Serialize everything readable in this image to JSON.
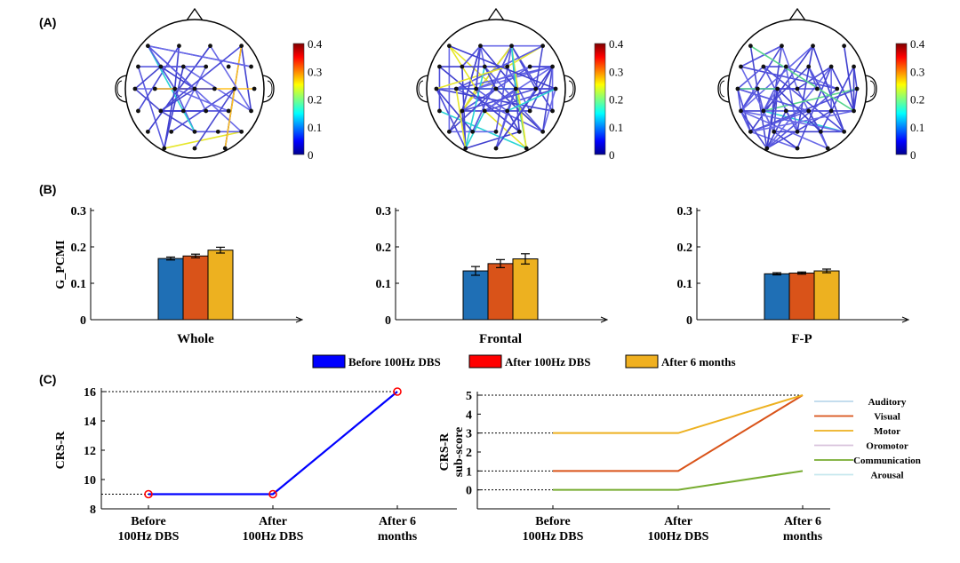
{
  "panel_labels": {
    "a": "(A)",
    "b": "(B)",
    "c": "(C)"
  },
  "colormaps": [
    {
      "ticks": [
        "0.4",
        "0.3",
        "0.2",
        "0.1",
        "0"
      ]
    },
    {
      "ticks": [
        "0.4",
        "0.3",
        "0.2",
        "0.1",
        "0"
      ]
    },
    {
      "ticks": [
        "0.4",
        "0.3",
        "0.2",
        "0.1",
        "0"
      ]
    }
  ],
  "legend": [
    {
      "label": "Before 100Hz DBS",
      "color": "#0000ff"
    },
    {
      "label": "After 100Hz DBS",
      "color": "#ff0000"
    },
    {
      "label": "After 6 months",
      "color": "#f0b020"
    }
  ],
  "chart_data": [
    {
      "type": "bar",
      "panel": "B",
      "ylabel": "G_PCMI",
      "ylim": [
        0,
        0.3
      ],
      "yticks": [
        "0",
        "0.1",
        "0.2",
        "0.3"
      ],
      "groups": [
        {
          "category": "Whole",
          "values": [
            0.168,
            0.175,
            0.191
          ],
          "errors": [
            0.004,
            0.005,
            0.008
          ]
        },
        {
          "category": "Frontal",
          "values": [
            0.134,
            0.154,
            0.167
          ],
          "errors": [
            0.012,
            0.011,
            0.014
          ]
        },
        {
          "category": "F-P",
          "values": [
            0.126,
            0.128,
            0.134
          ],
          "errors": [
            0.003,
            0.003,
            0.005
          ]
        }
      ],
      "series_colors": [
        "#1f6fb5",
        "#d95319",
        "#edb120"
      ]
    },
    {
      "type": "line",
      "panel": "C",
      "ylabel": "CRS-R",
      "ylim": [
        8,
        16
      ],
      "yticks": [
        "8",
        "10",
        "12",
        "14",
        "16"
      ],
      "categories": [
        "Before\n100Hz DBS",
        "After\n100Hz DBS",
        "After 6\nmonths"
      ],
      "series": [
        {
          "values": [
            9,
            9,
            16
          ],
          "color": "#0000ff"
        }
      ]
    },
    {
      "type": "line",
      "panel": "C",
      "ylabel": "CRS-R\nsub-score",
      "ylim": [
        -1,
        5
      ],
      "yticks": [
        "0",
        "1",
        "2",
        "3",
        "4",
        "5"
      ],
      "categories": [
        "Before\n100Hz DBS",
        "After\n100Hz DBS",
        "After 6\nmonths"
      ],
      "series": [
        {
          "name": "Auditory",
          "values": [
            null,
            null,
            null
          ],
          "color": "#bcd8ec"
        },
        {
          "name": "Visual",
          "values": [
            1,
            1,
            5
          ],
          "color": "#d95319"
        },
        {
          "name": "Motor",
          "values": [
            3,
            3,
            5
          ],
          "color": "#edb120"
        },
        {
          "name": "Oromotor",
          "values": [
            null,
            null,
            null
          ],
          "color": "#d9c3dc"
        },
        {
          "name": "Communication",
          "values": [
            0,
            0,
            1
          ],
          "color": "#77ac30"
        },
        {
          "name": "Arousal",
          "values": [
            null,
            null,
            null
          ],
          "color": "#c6e8ee"
        }
      ],
      "legend_text_colors": [
        "#222222",
        "#0000cc",
        "#0000cc",
        "#222222",
        "#0000cc",
        "#222222"
      ]
    }
  ]
}
